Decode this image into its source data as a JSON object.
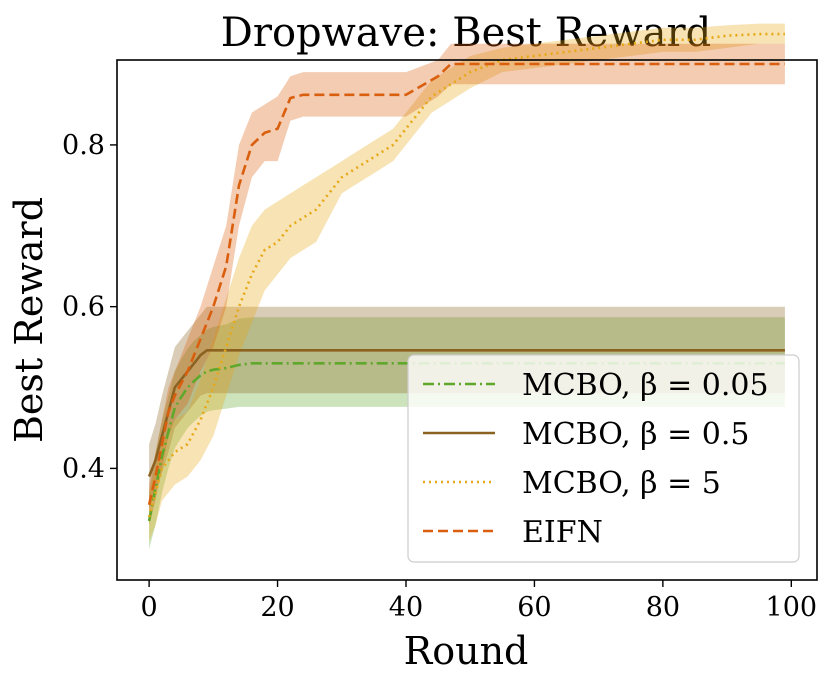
{
  "chart_data": {
    "type": "line",
    "title": "Dropwave: Best Reward",
    "xlabel": "Round",
    "ylabel": "Best Reward",
    "xlim": [
      -5,
      104
    ],
    "ylim": [
      0.262,
      0.905
    ],
    "xticks": [
      0,
      20,
      40,
      60,
      80,
      100
    ],
    "yticks": [
      0.4,
      0.6,
      0.8
    ],
    "xtick_labels": [
      "0",
      "20",
      "40",
      "60",
      "80",
      "100"
    ],
    "ytick_labels": [
      "0.4",
      "0.6",
      "0.8"
    ],
    "grid": false,
    "legend_position": "lower-right",
    "series": [
      {
        "name": "MCBO, β = 0.05",
        "color": "#5fa82b",
        "dash": "dashdot",
        "x": [
          0,
          1,
          2,
          3,
          4,
          5,
          6,
          7,
          8,
          9,
          10,
          12,
          14,
          16,
          20,
          30,
          40,
          50,
          60,
          70,
          80,
          90,
          99
        ],
        "y": [
          0.335,
          0.375,
          0.415,
          0.445,
          0.475,
          0.488,
          0.5,
          0.508,
          0.515,
          0.52,
          0.522,
          0.524,
          0.528,
          0.53,
          0.53,
          0.53,
          0.53,
          0.53,
          0.53,
          0.53,
          0.53,
          0.53,
          0.53
        ],
        "upper": [
          0.37,
          0.42,
          0.46,
          0.49,
          0.52,
          0.535,
          0.548,
          0.558,
          0.565,
          0.572,
          0.575,
          0.578,
          0.585,
          0.587,
          0.587,
          0.587,
          0.587,
          0.587,
          0.587,
          0.587,
          0.587,
          0.587,
          0.587
        ],
        "lower": [
          0.3,
          0.33,
          0.37,
          0.4,
          0.425,
          0.438,
          0.45,
          0.458,
          0.465,
          0.47,
          0.472,
          0.474,
          0.476,
          0.476,
          0.476,
          0.476,
          0.476,
          0.476,
          0.476,
          0.476,
          0.476,
          0.476,
          0.476
        ]
      },
      {
        "name": "MCBO, β = 0.5",
        "color": "#8c6220",
        "dash": "solid",
        "x": [
          0,
          1,
          2,
          3,
          4,
          5,
          6,
          7,
          8,
          9,
          10,
          20,
          30,
          40,
          50,
          60,
          70,
          80,
          90,
          99
        ],
        "y": [
          0.39,
          0.41,
          0.44,
          0.47,
          0.5,
          0.51,
          0.52,
          0.53,
          0.54,
          0.546,
          0.546,
          0.546,
          0.546,
          0.546,
          0.546,
          0.546,
          0.546,
          0.546,
          0.546,
          0.546
        ],
        "upper": [
          0.43,
          0.455,
          0.49,
          0.52,
          0.55,
          0.56,
          0.57,
          0.58,
          0.59,
          0.6,
          0.6,
          0.6,
          0.6,
          0.6,
          0.6,
          0.6,
          0.6,
          0.6,
          0.6,
          0.6
        ],
        "lower": [
          0.35,
          0.37,
          0.395,
          0.42,
          0.45,
          0.46,
          0.47,
          0.48,
          0.49,
          0.493,
          0.493,
          0.493,
          0.493,
          0.493,
          0.493,
          0.493,
          0.493,
          0.493,
          0.493,
          0.493
        ]
      },
      {
        "name": "MCBO, β = 5",
        "color": "#e6a817",
        "dash": "dotted",
        "x": [
          0,
          1,
          2,
          3,
          4,
          6,
          8,
          10,
          12,
          14,
          16,
          18,
          20,
          22,
          24,
          26,
          28,
          30,
          32,
          34,
          36,
          38,
          40,
          42,
          44,
          46,
          48,
          50,
          55,
          60,
          65,
          70,
          75,
          80,
          85,
          90,
          95,
          99
        ],
        "y": [
          0.34,
          0.37,
          0.4,
          0.41,
          0.42,
          0.43,
          0.46,
          0.5,
          0.55,
          0.6,
          0.64,
          0.67,
          0.68,
          0.7,
          0.71,
          0.72,
          0.74,
          0.76,
          0.77,
          0.78,
          0.79,
          0.8,
          0.82,
          0.84,
          0.86,
          0.87,
          0.88,
          0.89,
          0.905,
          0.91,
          0.915,
          0.92,
          0.925,
          0.93,
          0.93,
          0.935,
          0.937,
          0.937
        ],
        "upper": [
          0.37,
          0.4,
          0.43,
          0.45,
          0.46,
          0.47,
          0.51,
          0.56,
          0.61,
          0.66,
          0.7,
          0.72,
          0.73,
          0.74,
          0.75,
          0.76,
          0.77,
          0.78,
          0.79,
          0.8,
          0.81,
          0.82,
          0.84,
          0.86,
          0.88,
          0.89,
          0.9,
          0.91,
          0.92,
          0.925,
          0.93,
          0.935,
          0.94,
          0.945,
          0.945,
          0.948,
          0.95,
          0.95
        ],
        "lower": [
          0.31,
          0.33,
          0.36,
          0.37,
          0.38,
          0.39,
          0.41,
          0.44,
          0.49,
          0.54,
          0.58,
          0.62,
          0.64,
          0.66,
          0.67,
          0.68,
          0.71,
          0.74,
          0.75,
          0.76,
          0.77,
          0.78,
          0.8,
          0.82,
          0.84,
          0.85,
          0.86,
          0.87,
          0.89,
          0.895,
          0.9,
          0.905,
          0.91,
          0.915,
          0.915,
          0.92,
          0.925,
          0.925
        ]
      },
      {
        "name": "EIFN",
        "color": "#d95f0e",
        "dash": "dashed",
        "x": [
          0,
          1,
          2,
          3,
          4,
          6,
          8,
          10,
          12,
          14,
          16,
          18,
          20,
          22,
          24,
          26,
          28,
          30,
          35,
          40,
          45,
          47,
          50,
          55,
          60,
          70,
          80,
          90,
          99
        ],
        "y": [
          0.355,
          0.39,
          0.43,
          0.47,
          0.49,
          0.52,
          0.56,
          0.6,
          0.65,
          0.75,
          0.8,
          0.815,
          0.82,
          0.858,
          0.862,
          0.862,
          0.862,
          0.862,
          0.862,
          0.862,
          0.885,
          0.9,
          0.9,
          0.9,
          0.9,
          0.9,
          0.9,
          0.9,
          0.9
        ],
        "upper": [
          0.38,
          0.42,
          0.46,
          0.5,
          0.52,
          0.56,
          0.6,
          0.65,
          0.7,
          0.8,
          0.84,
          0.85,
          0.86,
          0.885,
          0.89,
          0.89,
          0.89,
          0.89,
          0.89,
          0.89,
          0.905,
          0.925,
          0.925,
          0.925,
          0.925,
          0.925,
          0.925,
          0.925,
          0.925
        ],
        "lower": [
          0.33,
          0.36,
          0.4,
          0.44,
          0.46,
          0.48,
          0.52,
          0.55,
          0.6,
          0.7,
          0.76,
          0.78,
          0.78,
          0.83,
          0.835,
          0.835,
          0.835,
          0.835,
          0.835,
          0.835,
          0.86,
          0.875,
          0.875,
          0.875,
          0.875,
          0.875,
          0.875,
          0.875,
          0.875
        ]
      }
    ]
  }
}
